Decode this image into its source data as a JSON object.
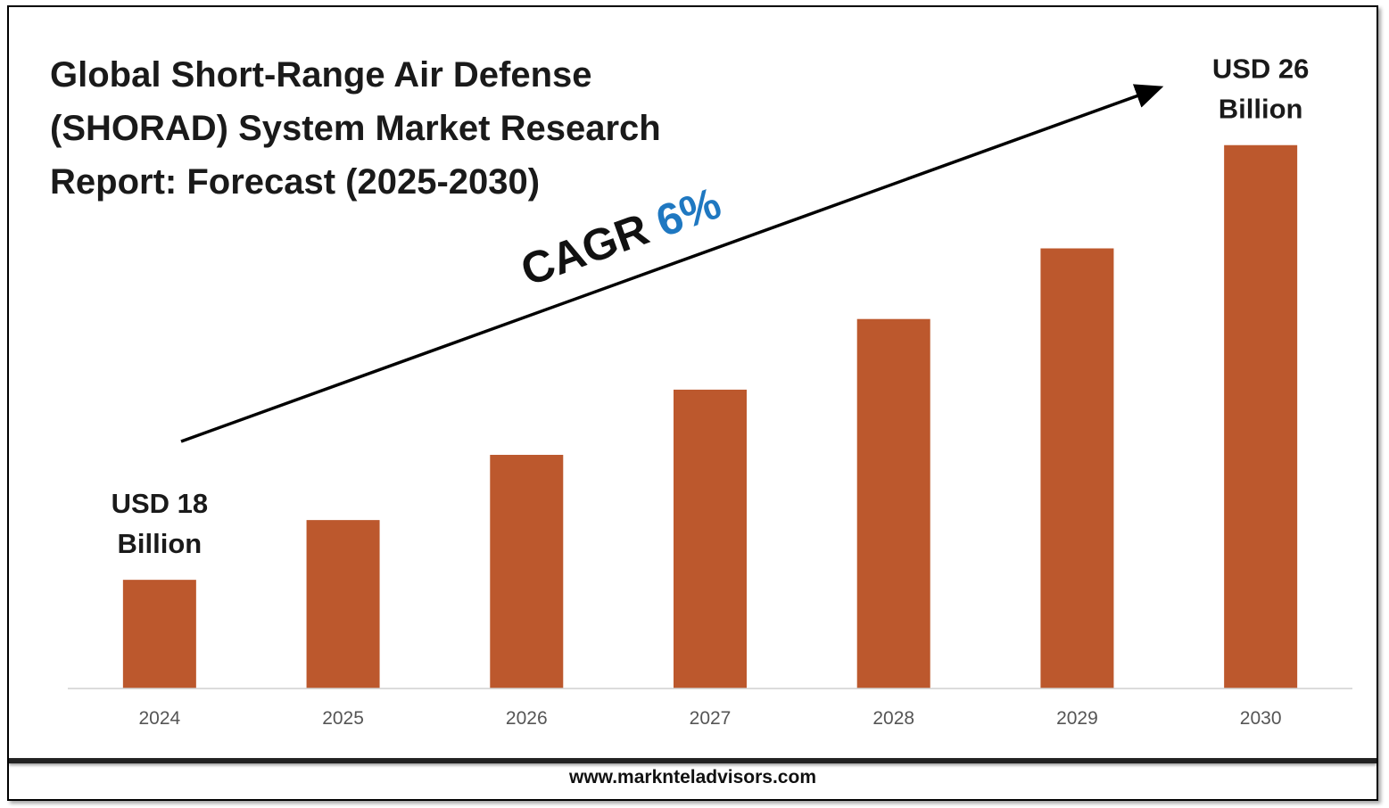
{
  "title": "Global Short-Range Air Defense (SHORAD) System Market Research Report: Forecast (2025-2030)",
  "footer": {
    "url": "www.marknteladvisors.com"
  },
  "cagr": {
    "label": "CAGR",
    "value": "6%"
  },
  "colors": {
    "bar": "#BC582D",
    "cagr_value": "#1F78C1",
    "text": "#1a1a1a",
    "axis": "#d0d0d0"
  },
  "chart_data": {
    "type": "bar",
    "title": "Global Short-Range Air Defense (SHORAD) System Market Research Report: Forecast (2025-2030)",
    "categories": [
      "2024",
      "2025",
      "2026",
      "2027",
      "2028",
      "2029",
      "2030"
    ],
    "values": [
      18,
      19.1,
      20.3,
      21.5,
      22.8,
      24.1,
      26
    ],
    "ylim": [
      16,
      26.8
    ],
    "xlabel": "",
    "ylabel": "",
    "grid": false,
    "annotations": [
      {
        "category": "2024",
        "lines": [
          "USD 18",
          "Billion"
        ]
      },
      {
        "category": "2030",
        "lines": [
          "USD 26",
          "Billion"
        ]
      }
    ]
  }
}
